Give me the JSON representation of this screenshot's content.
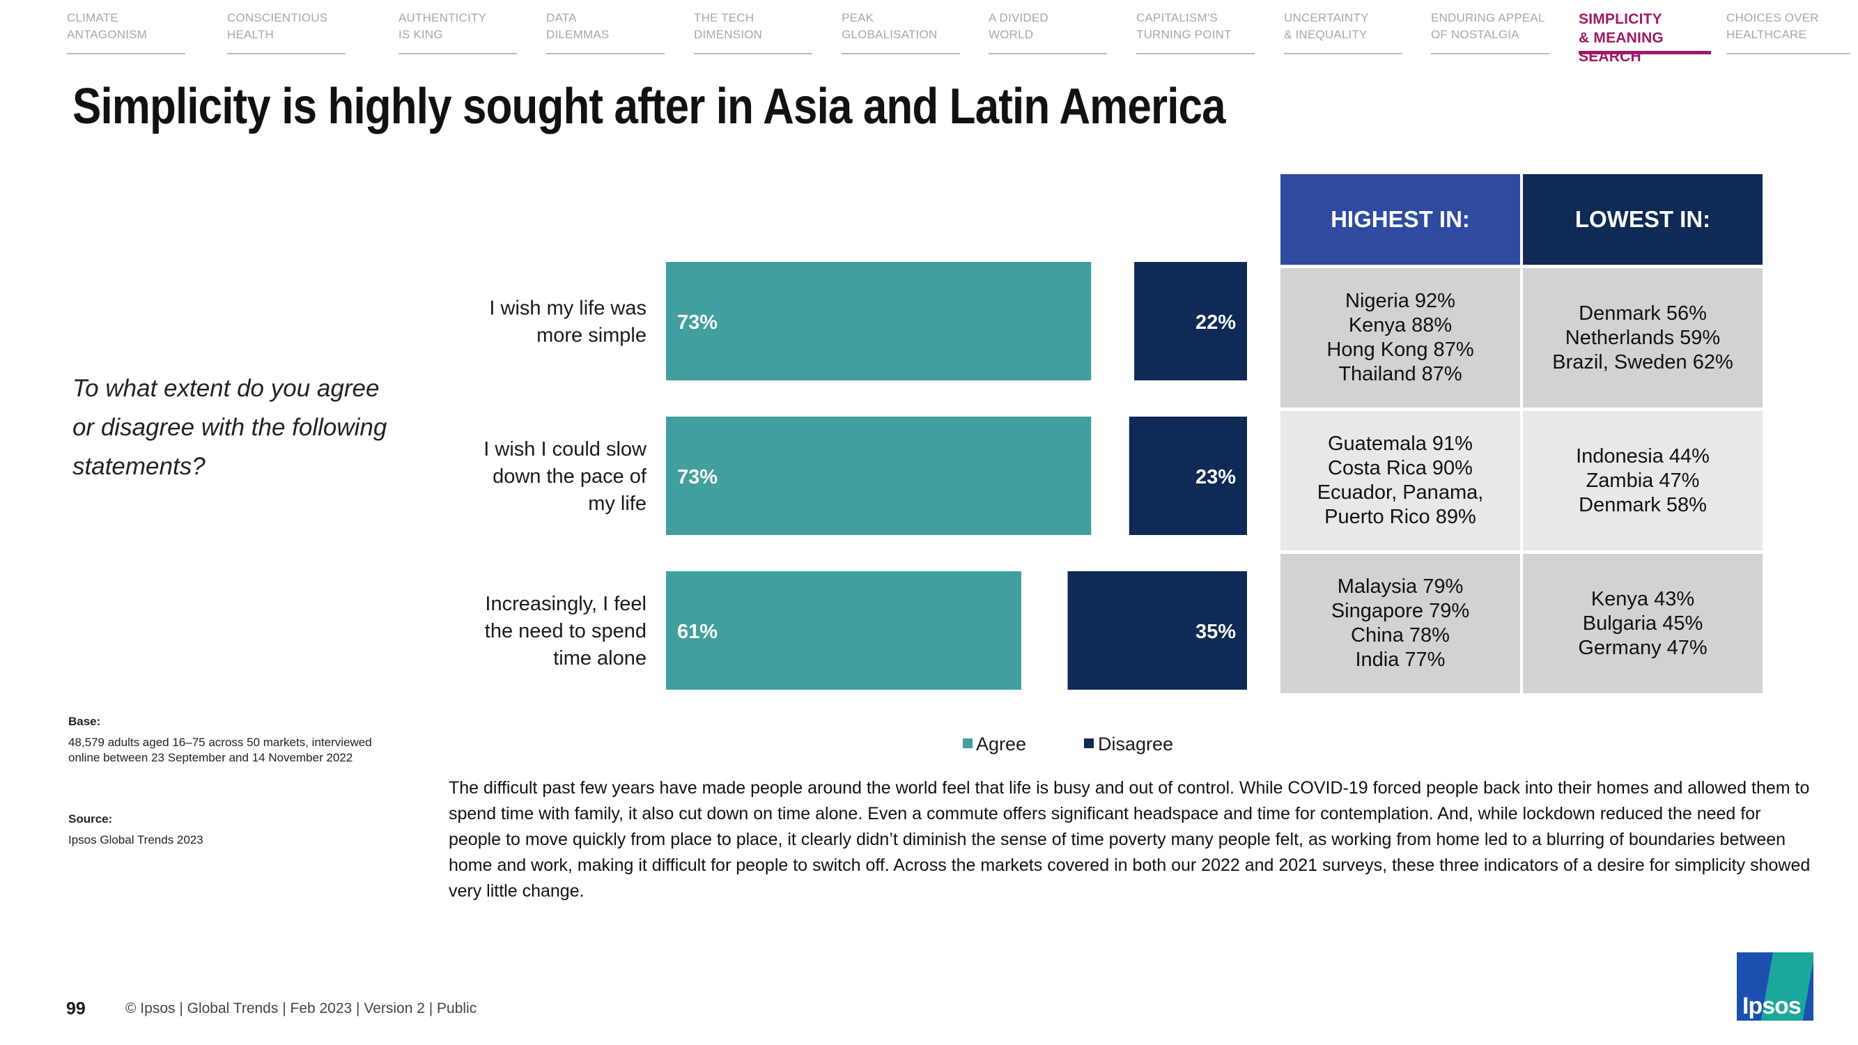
{
  "nav": [
    {
      "line1": "CLIMATE",
      "line2": "ANTAGONISM"
    },
    {
      "line1": "CONSCIENTIOUS",
      "line2": "HEALTH"
    },
    {
      "line1": "AUTHENTICITY",
      "line2": "IS KING"
    },
    {
      "line1": "DATA",
      "line2": "DILEMMAS"
    },
    {
      "line1": "THE TECH",
      "line2": "DIMENSION"
    },
    {
      "line1": "PEAK",
      "line2": "GLOBALISATION"
    },
    {
      "line1": "A DIVIDED",
      "line2": "WORLD"
    },
    {
      "line1": "CAPITALISM'S",
      "line2": "TURNING POINT"
    },
    {
      "line1": "UNCERTAINTY",
      "line2": "& INEQUALITY"
    },
    {
      "line1": "ENDURING APPEAL",
      "line2": "OF NOSTALGIA"
    },
    {
      "line1": "SIMPLICITY",
      "line2": "& MEANING SEARCH"
    },
    {
      "line1": "CHOICES OVER",
      "line2": "HEALTHCARE"
    }
  ],
  "title": "Simplicity is highly sought after in Asia and Latin America",
  "question": "To what extent do you agree or disagree with the following statements?",
  "base": {
    "label": "Base:",
    "text": "48,579 adults aged 16–75 across 50 markets, interviewed online between 23 September and 14 November 2022"
  },
  "source": {
    "label": "Source:",
    "text": "Ipsos Global Trends 2023"
  },
  "chart_data": {
    "type": "bar",
    "orientation": "horizontal",
    "stacked_layout": "agree-left, disagree-right",
    "categories": [
      [
        "I wish my life was",
        "more simple"
      ],
      [
        "I wish I could slow",
        "down the pace of",
        "my life"
      ],
      [
        "Increasingly, I feel",
        "the need to spend",
        "time alone"
      ]
    ],
    "series": [
      {
        "name": "Agree",
        "values": [
          73,
          73,
          61
        ],
        "labels": [
          "73%",
          "73%",
          "61%"
        ]
      },
      {
        "name": "Disagree",
        "values": [
          22,
          23,
          35
        ],
        "labels": [
          "22%",
          "23%",
          "35%"
        ]
      }
    ],
    "xlim": [
      0,
      100
    ],
    "legend": "bottom-center",
    "grid": false
  },
  "table": {
    "headers": [
      "HIGHEST IN:",
      "LOWEST IN:"
    ],
    "rows": [
      {
        "highest": [
          "Nigeria 92%",
          "Kenya 88%",
          "Hong Kong 87%",
          "Thailand 87%"
        ],
        "lowest": [
          "Denmark 56%",
          "Netherlands 59%",
          "Brazil, Sweden 62%"
        ]
      },
      {
        "highest": [
          "Guatemala 91%",
          "Costa Rica 90%",
          "Ecuador, Panama,",
          "Puerto Rico 89%"
        ],
        "lowest": [
          "Indonesia 44%",
          "Zambia 47%",
          "Denmark 58%"
        ]
      },
      {
        "highest": [
          "Malaysia 79%",
          "Singapore 79%",
          "China 78%",
          "India 77%"
        ],
        "lowest": [
          "Kenya 43%",
          "Bulgaria 45%",
          "Germany 47%"
        ]
      }
    ]
  },
  "body_text": "The difficult past few years have made people around the world feel that life is busy and out of control. While COVID-19 forced people back into their homes and allowed them to spend time with family, it also cut down on time alone. Even a commute offers significant headspace and time for contemplation. And, while lockdown reduced the need for people to move quickly from place to place, it clearly didn’t diminish the sense of time poverty many people felt, as working from home led to a blurring of boundaries between home and work, making it difficult for people to switch off. Across the markets covered in both our 2022 and 2021 surveys, these three indicators of a desire for simplicity showed very little change.",
  "footer": {
    "page": "99",
    "text": "© Ipsos | Global Trends | Feb 2023 | Version 2 | Public"
  },
  "logo": {
    "text": "Ipsos"
  },
  "colors": {
    "agree": "#41a09e",
    "disagree": "#0e2a55",
    "header_highest": "#2e4ba0",
    "header_lowest": "#0e2a55",
    "row_dark": "#d1d2d4",
    "row_light": "#e7e8e8",
    "accent": "#9d1a65"
  },
  "active_nav": 10
}
